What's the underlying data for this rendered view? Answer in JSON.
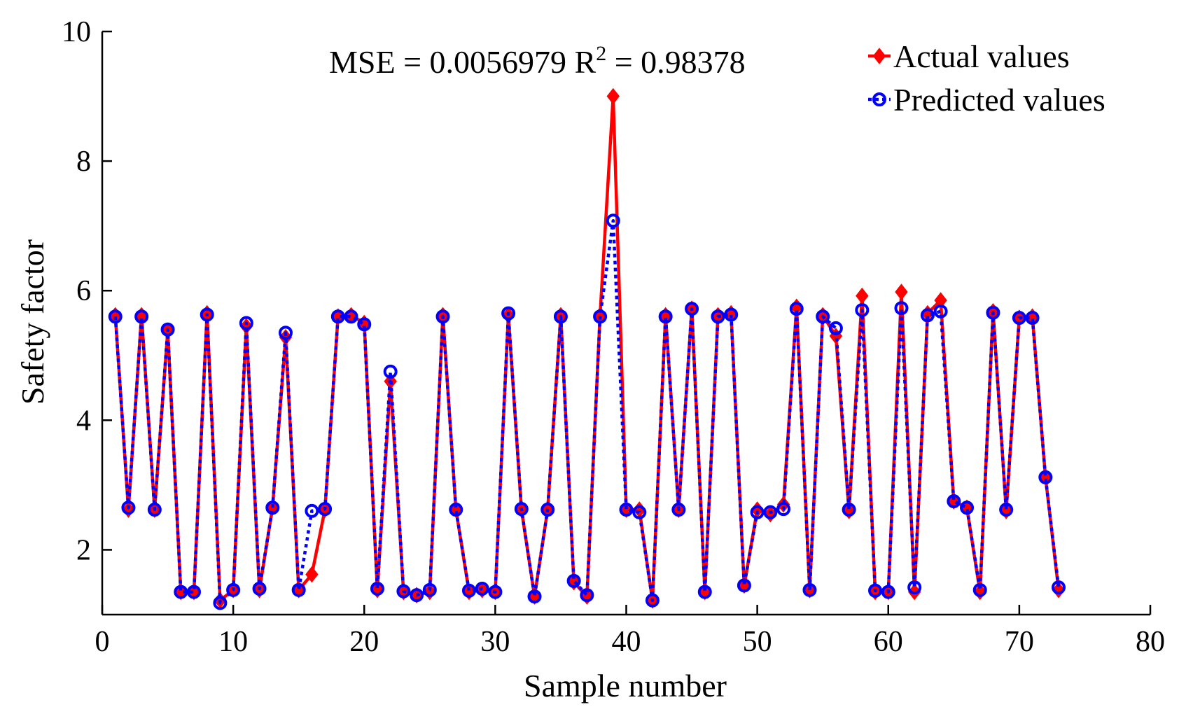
{
  "chart_data": {
    "type": "line",
    "xlabel": "Sample number",
    "ylabel": "Safety factor",
    "xlim": [
      0,
      80
    ],
    "ylim": [
      1,
      10
    ],
    "xticks": [
      0,
      10,
      20,
      30,
      40,
      50,
      60,
      70,
      80
    ],
    "yticks": [
      2,
      4,
      6,
      8,
      10
    ],
    "grid": false,
    "legend_position": "top-right",
    "annotation": {
      "mse_text": "MSE = 0.0056979 R",
      "r2_sup": "2",
      "r2_value": " = 0.98378"
    },
    "x": [
      1,
      2,
      3,
      4,
      5,
      6,
      7,
      8,
      9,
      10,
      11,
      12,
      13,
      14,
      15,
      16,
      17,
      18,
      19,
      20,
      21,
      22,
      23,
      24,
      25,
      26,
      27,
      28,
      29,
      30,
      31,
      32,
      33,
      34,
      35,
      36,
      37,
      38,
      39,
      40,
      41,
      42,
      43,
      44,
      45,
      46,
      47,
      48,
      49,
      50,
      51,
      52,
      53,
      54,
      55,
      56,
      57,
      58,
      59,
      60,
      61,
      62,
      63,
      64,
      65,
      66,
      67,
      68,
      69,
      70,
      71,
      72,
      73
    ],
    "series": [
      {
        "name": "Actual values",
        "color": "#ff0000",
        "marker": "diamond",
        "line_style": "solid",
        "values": [
          5.62,
          2.62,
          5.62,
          2.62,
          5.38,
          1.35,
          1.35,
          5.65,
          1.22,
          1.38,
          5.45,
          1.38,
          2.65,
          5.28,
          1.38,
          1.62,
          2.62,
          5.6,
          5.62,
          5.5,
          1.38,
          4.6,
          1.35,
          1.3,
          1.35,
          5.62,
          2.62,
          1.35,
          1.38,
          1.35,
          5.62,
          2.62,
          1.28,
          2.62,
          5.62,
          1.5,
          1.28,
          5.62,
          9.0,
          2.62,
          2.62,
          1.22,
          5.62,
          2.62,
          5.72,
          1.35,
          5.62,
          5.65,
          1.45,
          2.62,
          2.55,
          2.7,
          5.75,
          1.38,
          5.62,
          5.3,
          2.6,
          5.92,
          1.35,
          1.35,
          5.98,
          1.35,
          5.65,
          5.85,
          2.75,
          2.65,
          1.35,
          5.68,
          2.6,
          5.58,
          5.6,
          3.12,
          1.38
        ]
      },
      {
        "name": "Predicted values",
        "color": "#0000ff",
        "marker": "circle",
        "line_style": "dotted",
        "values": [
          5.6,
          2.65,
          5.6,
          2.62,
          5.4,
          1.35,
          1.35,
          5.63,
          1.18,
          1.38,
          5.5,
          1.4,
          2.65,
          5.35,
          1.38,
          2.6,
          2.63,
          5.6,
          5.6,
          5.48,
          1.4,
          4.75,
          1.36,
          1.3,
          1.38,
          5.6,
          2.62,
          1.37,
          1.4,
          1.35,
          5.65,
          2.63,
          1.28,
          2.62,
          5.6,
          1.52,
          1.3,
          5.6,
          7.08,
          2.62,
          2.58,
          1.22,
          5.6,
          2.62,
          5.72,
          1.35,
          5.6,
          5.63,
          1.45,
          2.58,
          2.58,
          2.63,
          5.72,
          1.38,
          5.6,
          5.42,
          2.62,
          5.7,
          1.37,
          1.35,
          5.73,
          1.42,
          5.62,
          5.68,
          2.75,
          2.65,
          1.38,
          5.66,
          2.62,
          5.58,
          5.58,
          3.12,
          1.42
        ]
      }
    ]
  }
}
